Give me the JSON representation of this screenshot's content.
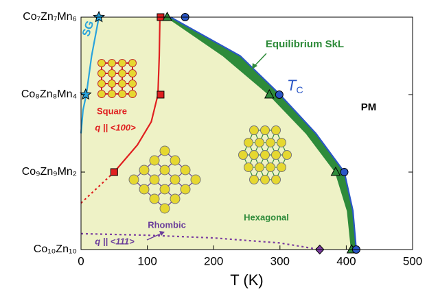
{
  "chart_data": {
    "type": "phase-diagram",
    "xlabel": "T (K)",
    "xlim": [
      0,
      500
    ],
    "xticks": [
      0,
      100,
      200,
      300,
      400,
      500
    ],
    "ylim": [
      0,
      6
    ],
    "yticks": [
      {
        "value": 6,
        "label": "Co₇Zn₇Mn₆"
      },
      {
        "value": 4,
        "label": "Co₈Zn₈Mn₄"
      },
      {
        "value": 2,
        "label": "Co₉Zn₉Mn₂"
      },
      {
        "value": 0,
        "label": "Co₁₀Zn₁₀"
      }
    ],
    "boundaries": [
      {
        "color": "#2a56c6",
        "style": "solid",
        "x": [
          135,
          240,
          300,
          354,
          397,
          410,
          415
        ],
        "values": [
          6,
          5,
          4,
          3,
          2,
          1,
          0
        ]
      },
      {
        "color": "#2e8b3a",
        "style": "solid",
        "x": [
          130,
          215,
          284,
          340,
          384,
          402,
          408
        ],
        "values": [
          6,
          5,
          4,
          3,
          2,
          1,
          0
        ]
      },
      {
        "color": "#29a3dc",
        "style": "solid",
        "x": [
          0,
          3,
          8,
          16,
          27
        ],
        "values": [
          3.0,
          3.6,
          4.0,
          5.0,
          6
        ]
      },
      {
        "color": "#e02020",
        "style": "solid",
        "x": [
          50,
          85,
          106,
          116,
          118,
          119
        ],
        "values": [
          2,
          2.7,
          3.3,
          4,
          5,
          6
        ]
      },
      {
        "color": "#e02020",
        "style": "dotted",
        "x": [
          0,
          25,
          50
        ],
        "values": [
          1.2,
          1.6,
          2
        ]
      },
      {
        "color": "#7a3da0",
        "style": "dotted",
        "x": [
          0,
          100,
          200,
          300,
          360
        ],
        "values": [
          0.41,
          0.37,
          0.3,
          0.17,
          0
        ]
      }
    ],
    "series": [
      {
        "marker": "star",
        "color": "#29a3dc",
        "x": [
          27,
          7
        ],
        "values": [
          6,
          4
        ]
      },
      {
        "marker": "square",
        "color": "#e02020",
        "x": [
          120,
          120,
          50
        ],
        "values": [
          6,
          4,
          2
        ]
      },
      {
        "marker": "triangle",
        "color": "#2e8b3a",
        "x": [
          130,
          284,
          384,
          408
        ],
        "values": [
          6,
          4,
          2,
          0
        ]
      },
      {
        "marker": "circle",
        "color": "#2a56c6",
        "x": [
          157,
          299,
          397,
          415
        ],
        "values": [
          6,
          4,
          2,
          0
        ]
      },
      {
        "marker": "diamond",
        "color": "#7a3da0",
        "x": [
          360
        ],
        "values": [
          0
        ]
      }
    ],
    "annotations": [
      "SG",
      "Square",
      "q || <100>",
      "Rhombic",
      "q || <111>",
      "Hexagonal",
      "Equilibrium SkL",
      "PM"
    ],
    "tc_label": {
      "symbol": "T",
      "sub": "C"
    }
  }
}
